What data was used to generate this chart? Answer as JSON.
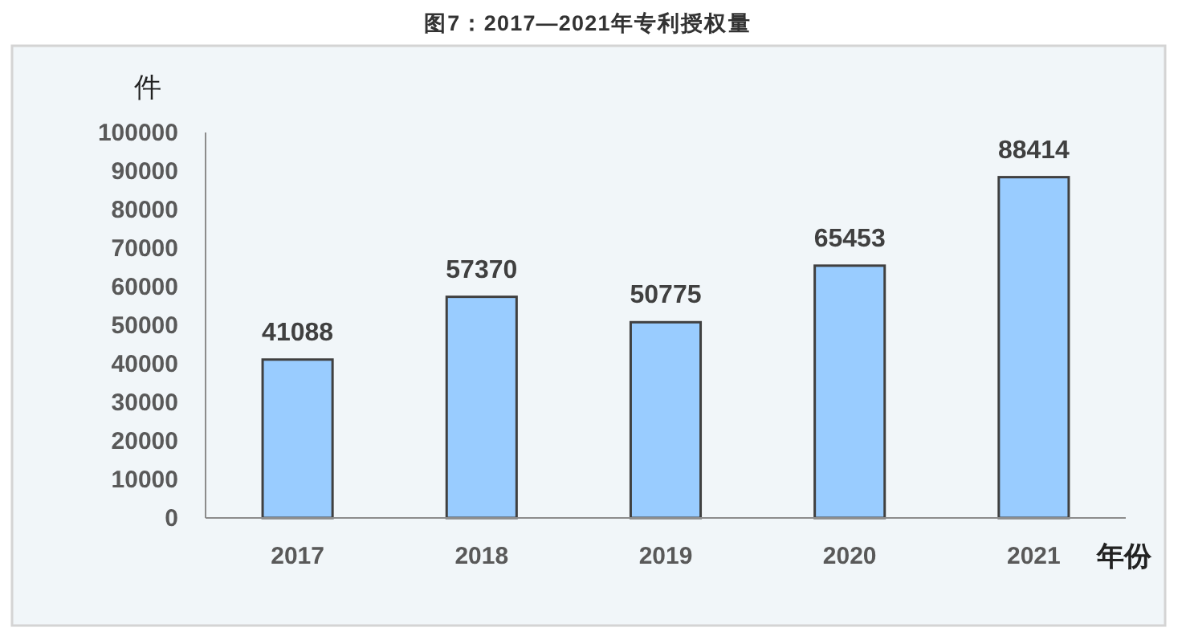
{
  "chart_data": {
    "type": "bar",
    "title": "图7：2017—2021年专利授权量",
    "ylabel": "件",
    "xlabel": "年份",
    "categories": [
      "2017",
      "2018",
      "2019",
      "2020",
      "2021"
    ],
    "values": [
      41088,
      57370,
      50775,
      65453,
      88414
    ],
    "color": "#99ccff",
    "ylim": [
      0,
      100000
    ],
    "yticks": [
      0,
      10000,
      20000,
      30000,
      40000,
      50000,
      60000,
      70000,
      80000,
      90000,
      100000
    ],
    "data_labels": true
  }
}
